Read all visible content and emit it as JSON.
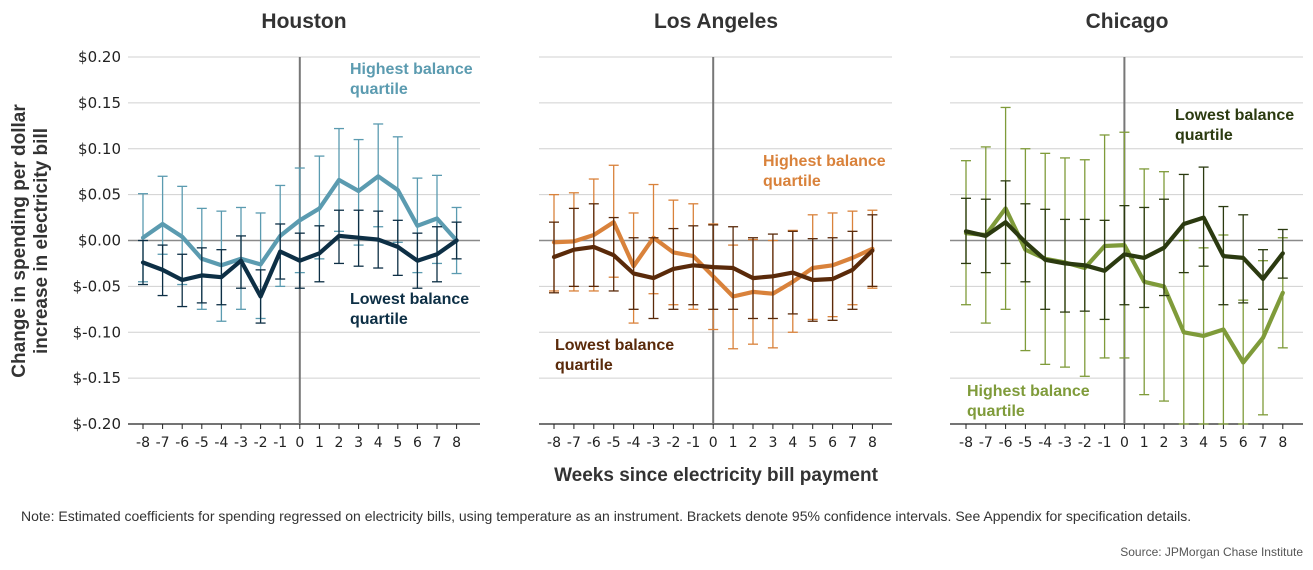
{
  "ylabel": [
    "Change in spending per dollar",
    "increase in electricity bill"
  ],
  "xlabel": "Weeks since electricity bill payment",
  "note": "Note: Estimated coefficients for spending regressed on electricity bills, using temperature as an instrument. Brackets denote 95% confidence intervals. See Appendix for specification details.",
  "source": "Source: JPMorgan Chase Institute",
  "colors": {
    "houston_high": "#5b9bb0",
    "houston_low": "#0d2f45",
    "la_high": "#d9823b",
    "la_low": "#5a2a0a",
    "chicago_high": "#7f9b3a",
    "chicago_low": "#2b3a10"
  },
  "chart_data": [
    {
      "type": "line",
      "title": "Houston",
      "x": [
        -8,
        -7,
        -6,
        -5,
        -4,
        -3,
        -2,
        -1,
        0,
        1,
        2,
        3,
        4,
        5,
        6,
        7,
        8
      ],
      "ylim": [
        -0.2,
        0.2
      ],
      "yticks": [
        0.2,
        0.15,
        0.1,
        0.05,
        0.0,
        -0.05,
        -0.1,
        -0.15,
        -0.2
      ],
      "ytick_labels": [
        "$0.20",
        "$0.15",
        "$0.10",
        "$0.05",
        "$0.00",
        "$-0.05",
        "$-0.10",
        "$-0.15",
        "$-0.20"
      ],
      "grid": true,
      "series": [
        {
          "name": "Highest balance quartile",
          "color": "#5b9bb0",
          "values": [
            0.003,
            0.018,
            0.004,
            -0.02,
            -0.027,
            -0.02,
            -0.026,
            0.005,
            0.022,
            0.035,
            0.066,
            0.054,
            0.07,
            0.055,
            0.016,
            0.024,
            0.0
          ],
          "lower": [
            -0.045,
            -0.015,
            -0.048,
            -0.075,
            -0.088,
            -0.075,
            -0.085,
            -0.05,
            -0.035,
            -0.02,
            0.01,
            -0.005,
            0.015,
            -0.002,
            -0.035,
            -0.025,
            -0.036
          ],
          "upper": [
            0.051,
            0.07,
            0.059,
            0.035,
            0.032,
            0.036,
            0.03,
            0.06,
            0.079,
            0.092,
            0.122,
            0.11,
            0.127,
            0.113,
            0.068,
            0.071,
            0.036
          ]
        },
        {
          "name": "Lowest balance quartile",
          "color": "#0d2f45",
          "values": [
            -0.024,
            -0.032,
            -0.043,
            -0.038,
            -0.04,
            -0.022,
            -0.061,
            -0.012,
            -0.022,
            -0.014,
            0.005,
            0.003,
            0.001,
            -0.007,
            -0.022,
            -0.015,
            0.0
          ],
          "lower": [
            -0.048,
            -0.06,
            -0.072,
            -0.068,
            -0.07,
            -0.052,
            -0.09,
            -0.042,
            -0.052,
            -0.045,
            -0.025,
            -0.028,
            -0.03,
            -0.038,
            -0.052,
            -0.045,
            -0.02
          ],
          "upper": [
            0.0,
            -0.005,
            -0.015,
            -0.008,
            -0.01,
            0.005,
            -0.032,
            0.018,
            0.008,
            0.016,
            0.033,
            0.033,
            0.032,
            0.022,
            0.008,
            0.015,
            0.02
          ]
        }
      ],
      "annotations": [
        {
          "text": [
            "Highest balance",
            "quartile"
          ],
          "series": "Highest balance quartile"
        },
        {
          "text": [
            "Lowest balance",
            "quartile"
          ],
          "series": "Lowest balance quartile"
        }
      ]
    },
    {
      "type": "line",
      "title": "Los Angeles",
      "x": [
        -8,
        -7,
        -6,
        -5,
        -4,
        -3,
        -2,
        -1,
        0,
        1,
        2,
        3,
        4,
        5,
        6,
        7,
        8
      ],
      "ylim": [
        -0.2,
        0.2
      ],
      "grid": true,
      "series": [
        {
          "name": "Highest balance quartile",
          "color": "#d9823b",
          "values": [
            -0.002,
            -0.001,
            0.006,
            0.02,
            -0.028,
            0.003,
            -0.013,
            -0.017,
            -0.039,
            -0.061,
            -0.056,
            -0.058,
            -0.045,
            -0.03,
            -0.027,
            -0.019,
            -0.009
          ],
          "lower": [
            -0.055,
            -0.055,
            -0.055,
            -0.04,
            -0.09,
            -0.058,
            -0.07,
            -0.075,
            -0.097,
            -0.118,
            -0.113,
            -0.117,
            -0.1,
            -0.086,
            -0.083,
            -0.07,
            -0.052
          ],
          "upper": [
            0.05,
            0.052,
            0.067,
            0.082,
            0.03,
            0.061,
            0.044,
            0.04,
            0.018,
            -0.005,
            0.001,
            0.0,
            0.011,
            0.028,
            0.03,
            0.032,
            0.033
          ]
        },
        {
          "name": "Lowest balance quartile",
          "color": "#5a2a0a",
          "values": [
            -0.018,
            -0.01,
            -0.007,
            -0.016,
            -0.036,
            -0.041,
            -0.031,
            -0.027,
            -0.029,
            -0.03,
            -0.041,
            -0.039,
            -0.035,
            -0.043,
            -0.042,
            -0.032,
            -0.011
          ],
          "lower": [
            -0.057,
            -0.05,
            -0.05,
            -0.055,
            -0.075,
            -0.085,
            -0.075,
            -0.07,
            -0.075,
            -0.075,
            -0.085,
            -0.085,
            -0.08,
            -0.088,
            -0.087,
            -0.075,
            -0.05
          ],
          "upper": [
            0.02,
            0.035,
            0.04,
            0.025,
            0.003,
            0.003,
            0.013,
            0.016,
            0.017,
            0.015,
            0.003,
            0.007,
            0.01,
            0.002,
            0.003,
            0.01,
            0.028
          ]
        }
      ],
      "annotations": [
        {
          "text": [
            "Highest balance",
            "quartile"
          ],
          "series": "Highest balance quartile"
        },
        {
          "text": [
            "Lowest balance",
            "quartile"
          ],
          "series": "Lowest balance quartile"
        }
      ]
    },
    {
      "type": "line",
      "title": "Chicago",
      "x": [
        -8,
        -7,
        -6,
        -5,
        -4,
        -3,
        -2,
        -1,
        0,
        1,
        2,
        3,
        4,
        5,
        6,
        7,
        8
      ],
      "ylim": [
        -0.2,
        0.2
      ],
      "grid": true,
      "series": [
        {
          "name": "Highest balance quartile",
          "color": "#7f9b3a",
          "values": [
            0.008,
            0.006,
            0.035,
            -0.01,
            -0.02,
            -0.024,
            -0.03,
            -0.006,
            -0.005,
            -0.045,
            -0.05,
            -0.1,
            -0.104,
            -0.097,
            -0.133,
            -0.106,
            -0.057
          ],
          "lower": [
            -0.07,
            -0.09,
            -0.075,
            -0.12,
            -0.135,
            -0.138,
            -0.148,
            -0.128,
            -0.128,
            -0.168,
            -0.175,
            -0.2,
            -0.2,
            -0.2,
            -0.2,
            -0.19,
            -0.117
          ],
          "upper": [
            0.087,
            0.102,
            0.145,
            0.1,
            0.095,
            0.09,
            0.088,
            0.115,
            0.118,
            0.078,
            0.075,
            -0.0,
            -0.008,
            0.006,
            -0.065,
            -0.022,
            0.003
          ]
        },
        {
          "name": "Lowest balance quartile",
          "color": "#2b3a10",
          "values": [
            0.01,
            0.005,
            0.02,
            -0.002,
            -0.021,
            -0.025,
            -0.027,
            -0.033,
            -0.015,
            -0.019,
            -0.008,
            0.018,
            0.025,
            -0.017,
            -0.019,
            -0.042,
            -0.014
          ],
          "lower": [
            -0.025,
            -0.035,
            -0.025,
            -0.045,
            -0.075,
            -0.078,
            -0.077,
            -0.086,
            -0.07,
            -0.073,
            -0.06,
            -0.035,
            -0.028,
            -0.07,
            -0.068,
            -0.075,
            -0.041
          ],
          "upper": [
            0.046,
            0.045,
            0.065,
            0.04,
            0.034,
            0.023,
            0.023,
            0.022,
            0.038,
            0.036,
            0.045,
            0.072,
            0.08,
            0.037,
            0.028,
            -0.01,
            0.012
          ]
        }
      ],
      "annotations": [
        {
          "text": [
            "Lowest balance",
            "quartile"
          ],
          "series": "Lowest balance quartile"
        },
        {
          "text": [
            "Highest balance",
            "quartile"
          ],
          "series": "Highest balance quartile"
        }
      ]
    }
  ]
}
